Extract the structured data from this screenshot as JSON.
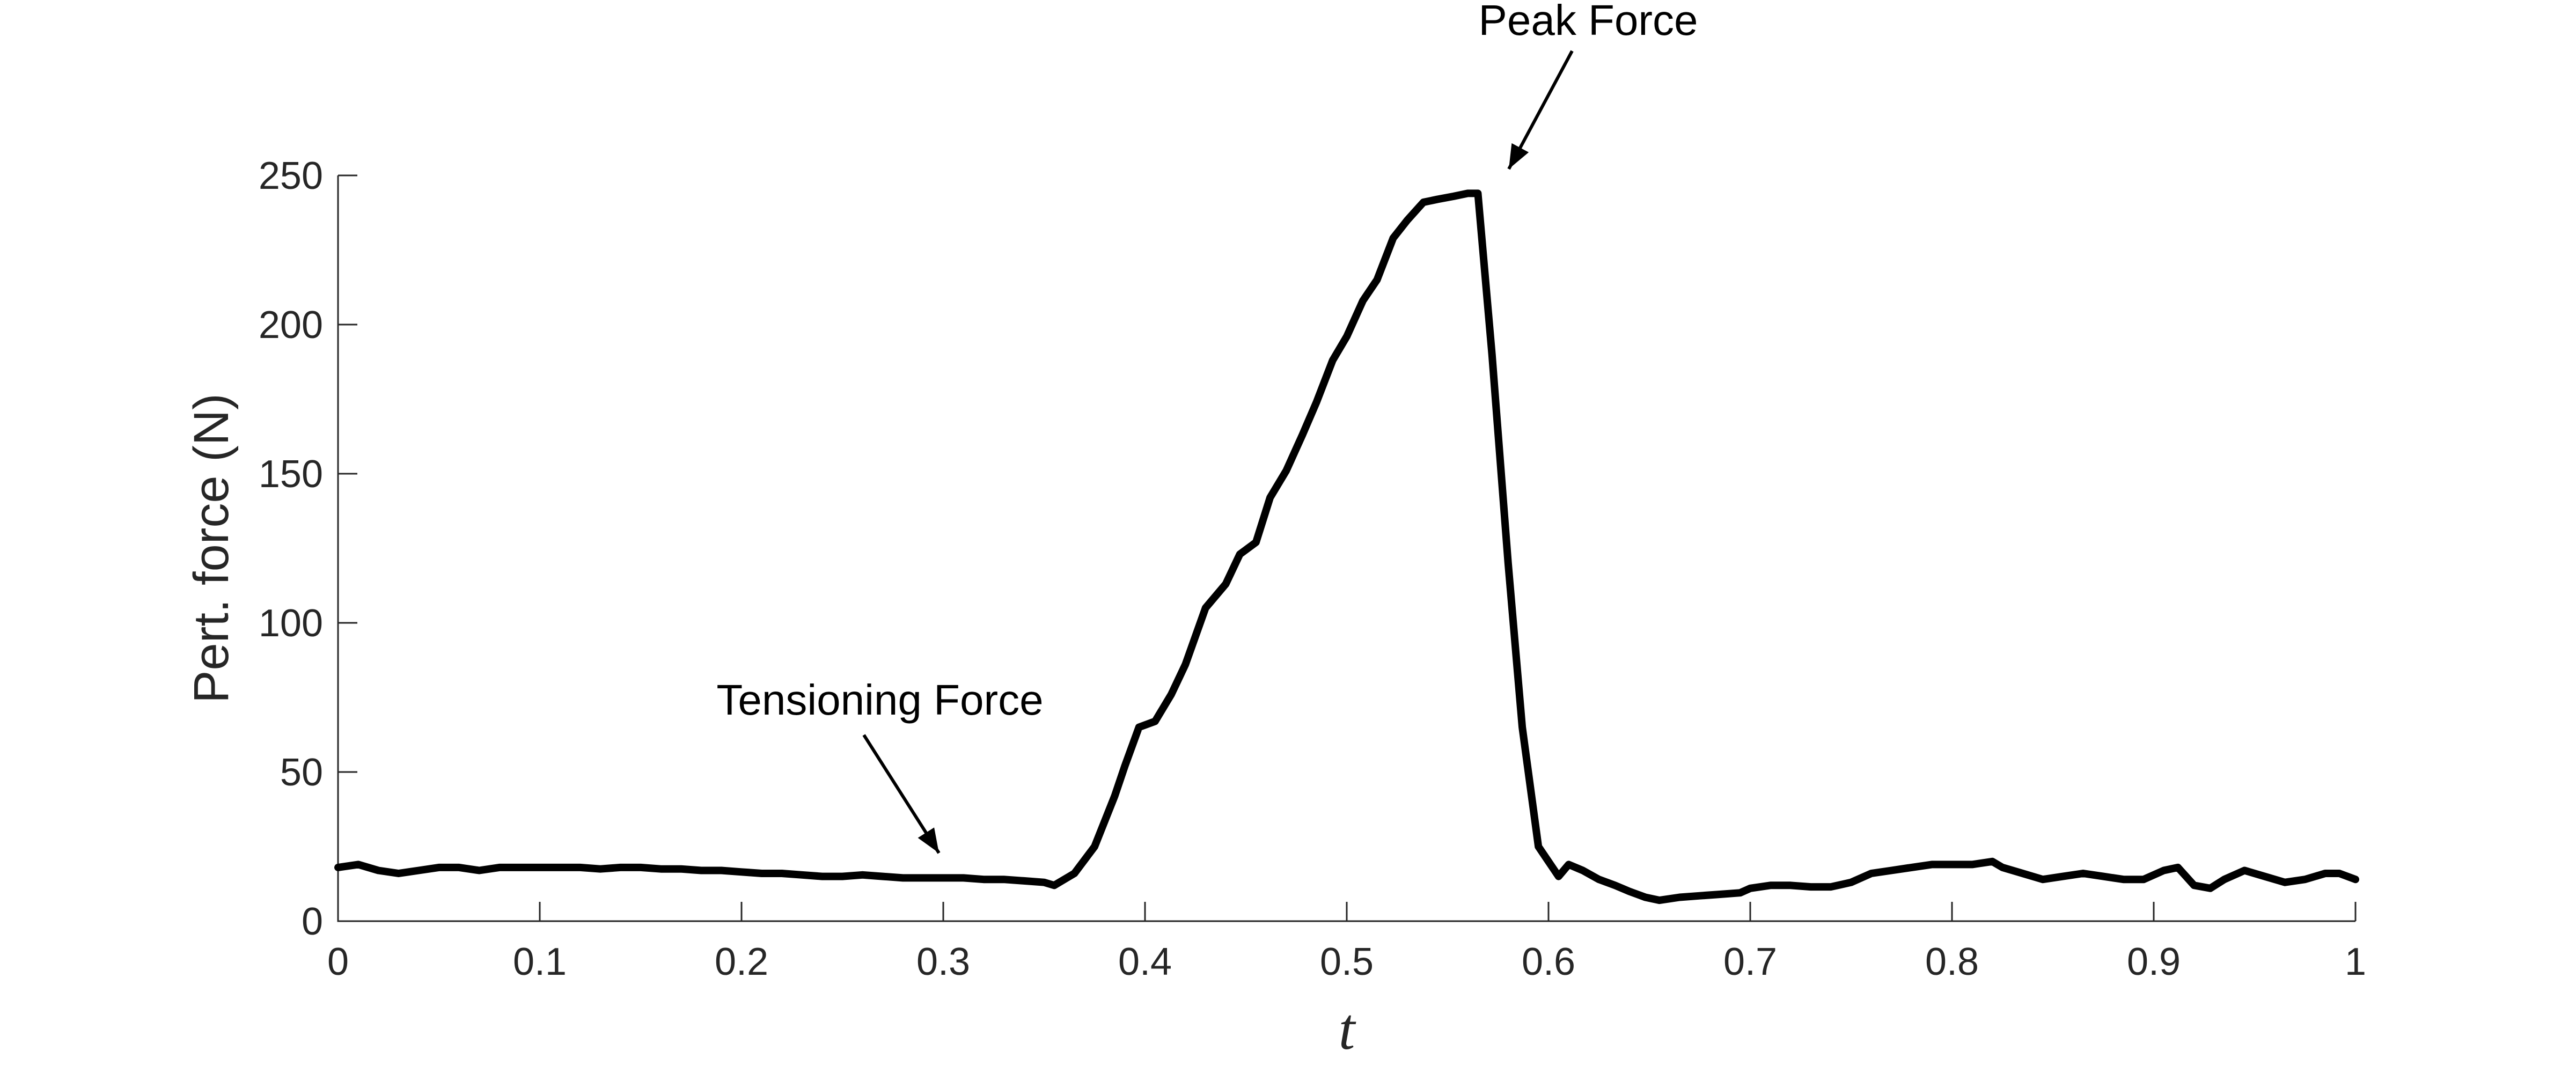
{
  "chart_data": {
    "type": "line",
    "title": "",
    "xlabel": "t",
    "ylabel": "Pert. force (N)",
    "xlim": [
      0,
      1
    ],
    "ylim": [
      0,
      250
    ],
    "xticks": [
      0,
      0.1,
      0.2,
      0.3,
      0.4,
      0.5,
      0.6,
      0.7,
      0.8,
      0.9,
      1
    ],
    "xtick_labels": [
      "0",
      "0.1",
      "0.2",
      "0.3",
      "0.4",
      "0.5",
      "0.6",
      "0.7",
      "0.8",
      "0.9",
      "1"
    ],
    "yticks": [
      0,
      50,
      100,
      150,
      200,
      250
    ],
    "ytick_labels": [
      "0",
      "50",
      "100",
      "150",
      "200",
      "250"
    ],
    "grid": false,
    "legend": "none",
    "series": [
      {
        "color": "#000000",
        "x": [
          0,
          0.01,
          0.02,
          0.03,
          0.04,
          0.05,
          0.06,
          0.07,
          0.08,
          0.09,
          0.1,
          0.11,
          0.12,
          0.13,
          0.14,
          0.15,
          0.16,
          0.17,
          0.18,
          0.19,
          0.2,
          0.21,
          0.22,
          0.23,
          0.24,
          0.25,
          0.26,
          0.27,
          0.28,
          0.29,
          0.3,
          0.31,
          0.32,
          0.33,
          0.34,
          0.35,
          0.355,
          0.365,
          0.375,
          0.385,
          0.39,
          0.397,
          0.405,
          0.413,
          0.42,
          0.43,
          0.44,
          0.447,
          0.455,
          0.462,
          0.47,
          0.478,
          0.485,
          0.493,
          0.5,
          0.508,
          0.515,
          0.523,
          0.53,
          0.538,
          0.545,
          0.553,
          0.56,
          0.565,
          0.572,
          0.58,
          0.587,
          0.595,
          0.6,
          0.605,
          0.61,
          0.617,
          0.625,
          0.633,
          0.64,
          0.648,
          0.655,
          0.665,
          0.675,
          0.685,
          0.695,
          0.7,
          0.71,
          0.72,
          0.73,
          0.74,
          0.75,
          0.76,
          0.77,
          0.78,
          0.79,
          0.8,
          0.81,
          0.82,
          0.825,
          0.835,
          0.845,
          0.855,
          0.865,
          0.875,
          0.885,
          0.895,
          0.905,
          0.912,
          0.92,
          0.928,
          0.935,
          0.945,
          0.955,
          0.965,
          0.975,
          0.985,
          0.992,
          1.0
        ],
        "y": [
          18,
          19,
          17,
          16,
          17,
          18,
          18,
          17,
          18,
          18,
          18,
          18,
          18,
          17.5,
          18,
          18,
          17.5,
          17.5,
          17,
          17,
          16.5,
          16,
          16,
          15.5,
          15,
          15,
          15.5,
          15,
          14.5,
          14.5,
          14.5,
          14.5,
          14,
          14,
          13.5,
          13,
          12,
          16,
          25,
          42,
          52,
          65,
          67,
          76,
          86,
          105,
          113,
          123,
          127,
          142,
          151,
          163,
          174,
          188,
          196,
          208,
          215,
          229,
          235,
          241,
          242,
          243,
          244,
          244,
          190,
          120,
          65,
          25,
          20,
          15,
          19,
          17,
          14,
          12,
          10,
          8,
          7,
          8,
          8.5,
          9,
          9.5,
          11,
          12,
          12,
          11.5,
          11.5,
          13,
          16,
          17,
          18,
          19,
          19,
          19,
          20,
          18,
          16,
          14,
          15,
          16,
          15,
          14,
          14,
          17,
          18,
          12,
          11,
          14,
          17,
          15,
          13,
          14,
          16,
          16,
          14
        ]
      }
    ],
    "annotations": [
      {
        "text": "Peak Force",
        "x": 0.572,
        "y": 244
      },
      {
        "text": "Tensioning Force",
        "x": 0.3,
        "y": 16
      }
    ]
  }
}
